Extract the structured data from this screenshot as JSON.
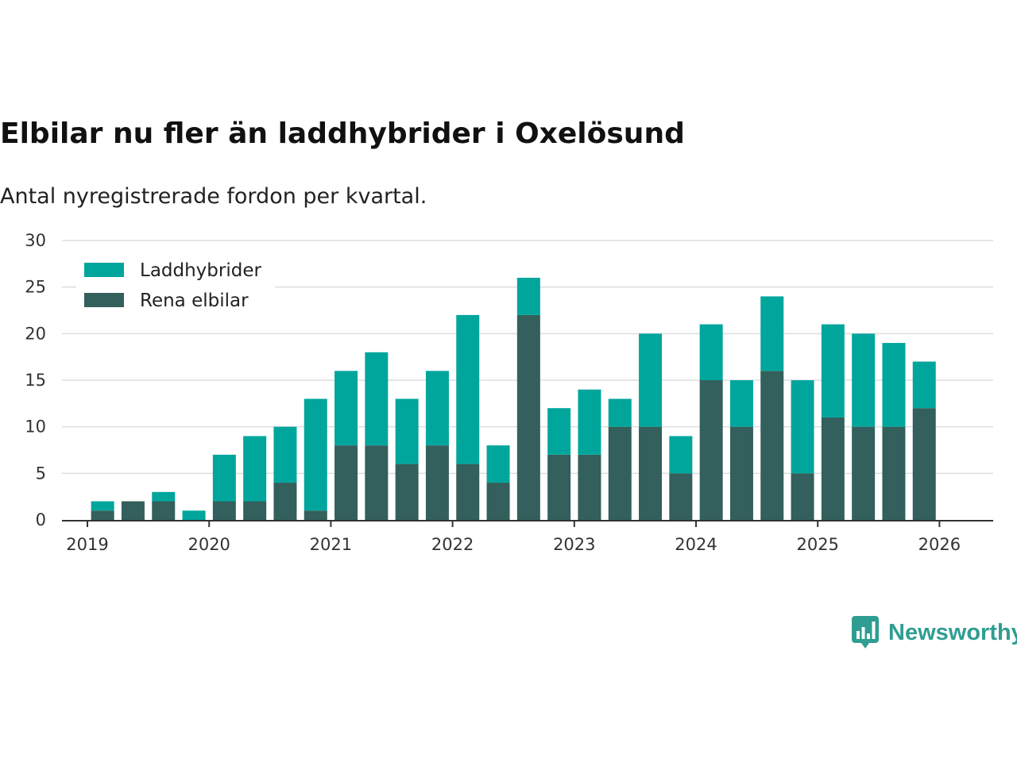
{
  "header": {
    "title": "Elbilar nu fler än laddhybrider i Oxelösund",
    "subtitle": "Antal nyregistrerade fordon per kvartal."
  },
  "brand": {
    "name": "Newsworthy",
    "color": "#2f9d92"
  },
  "colors": {
    "laddhybrider": "#00a69c",
    "rena_elbilar": "#335f5c",
    "grid": "#dddddd",
    "axis": "#333333"
  },
  "chart_data": {
    "type": "bar",
    "stacked": true,
    "title": "Elbilar nu fler än laddhybrider i Oxelösund",
    "subtitle": "Antal nyregistrerade fordon per kvartal.",
    "xlabel": "",
    "ylabel": "",
    "ylim": [
      0,
      30
    ],
    "yticks": [
      "0",
      "5",
      "10",
      "15",
      "20",
      "25",
      "30"
    ],
    "xticks": [
      "2019",
      "2020",
      "2021",
      "2022",
      "2023",
      "2024",
      "2025",
      "2026"
    ],
    "legend_position": "top-left",
    "categories": [
      "2019 Q1",
      "2019 Q2",
      "2019 Q3",
      "2019 Q4",
      "2020 Q1",
      "2020 Q2",
      "2020 Q3",
      "2020 Q4",
      "2021 Q1",
      "2021 Q2",
      "2021 Q3",
      "2021 Q4",
      "2022 Q1",
      "2022 Q2",
      "2022 Q3",
      "2022 Q4",
      "2023 Q1",
      "2023 Q2",
      "2023 Q3",
      "2023 Q4",
      "2024 Q1",
      "2024 Q2",
      "2024 Q3",
      "2024 Q4",
      "2025 Q1",
      "2025 Q2",
      "2025 Q3",
      "2025 Q4"
    ],
    "series": [
      {
        "name": "Rena elbilar",
        "values": [
          1,
          2,
          2,
          0,
          2,
          2,
          4,
          1,
          8,
          8,
          6,
          8,
          6,
          4,
          22,
          7,
          7,
          10,
          10,
          5,
          15,
          10,
          16,
          5,
          11,
          10,
          10,
          12
        ]
      },
      {
        "name": "Laddhybrider",
        "values": [
          1,
          0,
          1,
          1,
          5,
          7,
          6,
          12,
          8,
          10,
          7,
          8,
          16,
          4,
          4,
          5,
          7,
          3,
          10,
          4,
          6,
          5,
          8,
          10,
          10,
          10,
          9,
          5
        ]
      }
    ],
    "legend": [
      "Laddhybrider",
      "Rena elbilar"
    ]
  }
}
